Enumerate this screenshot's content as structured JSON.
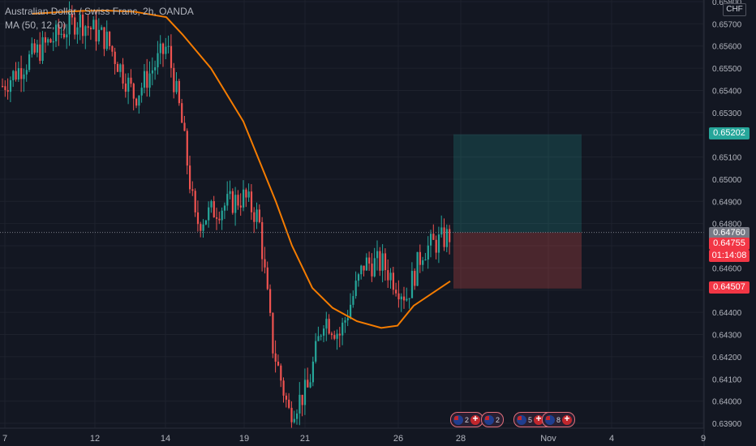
{
  "header": {
    "title": "Australian Dollar / Swiss Franc, 2h, OANDA",
    "indicator": "MA (50, 12, 0)"
  },
  "currency_button": "CHF",
  "price_axis": {
    "labels": [
      "0.65800",
      "0.65700",
      "0.65600",
      "0.65500",
      "0.65400",
      "0.65300",
      "0.65100",
      "0.65000",
      "0.64900",
      "0.64800",
      "0.64600",
      "0.64400",
      "0.64300",
      "0.64200",
      "0.64100",
      "0.64000",
      "0.63900"
    ]
  },
  "time_axis": {
    "labels": [
      "7",
      "12",
      "14",
      "19",
      "21",
      "26",
      "28",
      "Nov",
      "4",
      "9"
    ]
  },
  "price_tags": {
    "target": "0.65202",
    "current": "0.64760",
    "last": "0.64755",
    "countdown": "01:14:08",
    "stop": "0.64507"
  },
  "events": [
    {
      "count": "2"
    },
    {
      "count": "2"
    },
    {
      "count": "5"
    },
    {
      "count": "3"
    },
    {
      "count": "8"
    }
  ],
  "colors": {
    "background": "#131722",
    "up": "#26a69a",
    "down": "#ef5350",
    "ma": "#f57c00",
    "profit_zone": "#26a69a",
    "loss_zone": "#ef5350",
    "axis_text": "#b2b5be"
  },
  "chart_data": {
    "type": "candlestick",
    "symbol": "AUDCHF",
    "price_range": [
      0.6388,
      0.6583
    ],
    "position": {
      "entry": 0.6476,
      "target": 0.65202,
      "stop": 0.64507
    },
    "ma_line": [
      [
        0.657,
        0.65745
      ],
      [
        0.6569,
        0.65752
      ],
      [
        0.6568,
        0.65758
      ],
      [
        0.6567,
        0.6576
      ],
      [
        0.6566,
        0.65755
      ],
      [
        0.6565,
        0.6573
      ],
      [
        0.6564,
        0.65652
      ],
      [
        0.6562,
        0.655
      ],
      [
        0.656,
        0.6526
      ],
      [
        0.6558,
        0.6508
      ],
      [
        0.6557,
        0.649
      ],
      [
        0.6556,
        0.647
      ],
      [
        0.6555,
        0.6451
      ],
      [
        0.6554,
        0.6442
      ],
      [
        0.6553,
        0.6436
      ],
      [
        0.6552,
        0.6433
      ],
      [
        0.6551,
        0.6434
      ],
      [
        0.655,
        0.6443
      ],
      [
        0.6549,
        0.6454
      ]
    ]
  }
}
